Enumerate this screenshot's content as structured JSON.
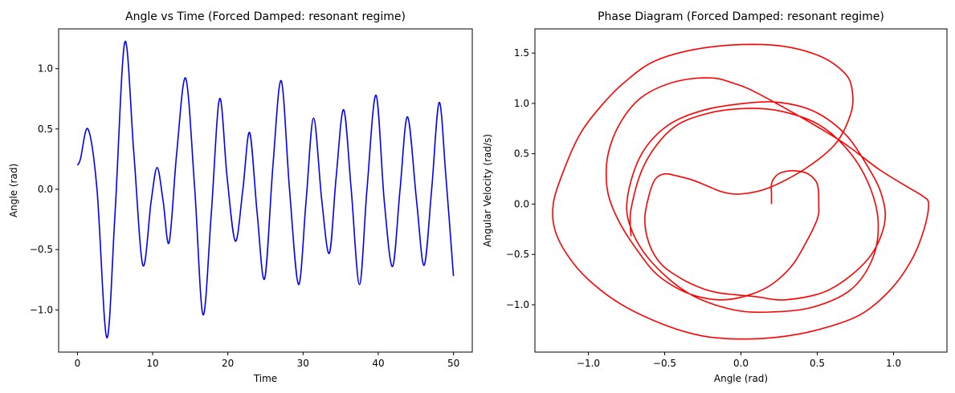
{
  "chart_data": [
    {
      "type": "line",
      "title": "Angle vs Time (Forced Damped: resonant regime)",
      "xlabel": "Time",
      "ylabel": "Angle (rad)",
      "xlim": [
        -2.5,
        52.5
      ],
      "ylim": [
        -1.35,
        1.33
      ],
      "xticks": [
        0,
        10,
        20,
        30,
        40,
        50
      ],
      "xtick_labels": [
        "0",
        "10",
        "20",
        "30",
        "40",
        "50"
      ],
      "yticks": [
        -1.0,
        -0.5,
        0.0,
        0.5,
        1.0
      ],
      "ytick_labels": [
        "−1.0",
        "−0.5",
        "0.0",
        "0.5",
        "1.0"
      ],
      "grid": false,
      "color": "#0000ff",
      "series": [
        {
          "x": [
            0,
            0.4,
            1.4,
            2.6,
            3.9,
            5.0,
            6.3,
            7.5,
            8.7,
            9.8,
            10.6,
            11.4,
            12.2,
            13.2,
            14.4,
            15.6,
            16.7,
            17.8,
            18.9,
            19.9,
            21.0,
            22.0,
            22.9,
            23.9,
            24.9,
            26.0,
            27.1,
            28.2,
            29.4,
            30.4,
            31.4,
            32.5,
            33.5,
            34.4,
            35.4,
            36.4,
            37.5,
            38.5,
            39.7,
            40.8,
            41.9,
            42.9,
            43.9,
            45.1,
            46.1,
            47.1,
            48.1,
            49.0,
            50.0
          ],
          "y": [
            0.2,
            0.25,
            0.5,
            0.0,
            -1.23,
            -0.2,
            1.22,
            0.3,
            -0.63,
            -0.1,
            0.18,
            -0.1,
            -0.44,
            0.3,
            0.92,
            0.0,
            -1.04,
            -0.2,
            0.75,
            0.1,
            -0.43,
            0.0,
            0.47,
            -0.2,
            -0.74,
            0.2,
            0.9,
            0.0,
            -0.79,
            -0.1,
            0.59,
            -0.1,
            -0.53,
            0.1,
            0.66,
            0.0,
            -0.79,
            0.0,
            0.78,
            -0.1,
            -0.64,
            0.0,
            0.6,
            -0.1,
            -0.63,
            0.0,
            0.72,
            0.1,
            -0.72
          ]
        }
      ]
    },
    {
      "type": "line",
      "title": "Phase Diagram (Forced Damped: resonant regime)",
      "xlabel": "Angle (rad)",
      "ylabel": "Angular Velocity (rad/s)",
      "xlim": [
        -1.35,
        1.35
      ],
      "ylim": [
        -1.47,
        1.74
      ],
      "xticks": [
        -1.0,
        -0.5,
        0.0,
        0.5,
        1.0
      ],
      "xtick_labels": [
        "−1.0",
        "−0.5",
        "0.0",
        "0.5",
        "1.0"
      ],
      "yticks": [
        -1.0,
        -0.5,
        0.0,
        0.5,
        1.0,
        1.5
      ],
      "ytick_labels": [
        "−1.0",
        "−0.5",
        "0.0",
        "0.5",
        "1.0",
        "1.5"
      ],
      "grid": false,
      "color": "#ff0000",
      "series": [
        {
          "x": [
            0.2,
            0.2,
            0.2,
            0.23,
            0.28,
            0.36,
            0.44,
            0.5,
            0.51,
            0.5,
            0.42,
            0.33,
            0.2,
            0.06,
            -0.1,
            -0.25,
            -0.4,
            -0.55,
            -0.66,
            -0.79,
            -0.87,
            -0.88,
            -0.84,
            -0.76,
            -0.66,
            -0.52,
            -0.35,
            -0.17,
            -0.05,
            0.07,
            0.35,
            0.66,
            0.9,
            1.08,
            1.19,
            1.23,
            1.2,
            1.12,
            0.98,
            0.78,
            0.5,
            0.25,
            0.0,
            -0.25,
            -0.5,
            -0.78,
            -1.0,
            -1.14,
            -1.22,
            -1.23,
            -1.17,
            -1.06,
            -0.93,
            -0.77,
            -0.55,
            -0.2,
            0.2,
            0.5,
            0.68,
            0.73,
            0.72,
            0.62,
            0.42,
            0.18,
            0.0,
            -0.12,
            -0.22,
            -0.32,
            -0.42,
            -0.5,
            -0.56,
            -0.6,
            -0.63,
            -0.6,
            -0.52,
            -0.38,
            -0.25,
            -0.15,
            -0.04,
            0.1,
            0.3,
            0.58,
            0.83,
            0.94,
            0.92,
            0.82,
            0.68,
            0.48,
            0.25,
            0.02,
            -0.25,
            -0.48,
            -0.65,
            -0.74,
            -0.73,
            -0.6,
            -0.35,
            -0.05,
            0.22,
            0.48,
            0.72,
            0.86,
            0.9,
            0.85,
            0.72,
            0.52,
            0.27,
            0.04,
            -0.22,
            -0.45,
            -0.63,
            -0.72,
            -0.72
          ],
          "y": [
            0.0,
            0.1,
            0.2,
            0.28,
            0.32,
            0.33,
            0.3,
            0.2,
            0.0,
            -0.15,
            -0.4,
            -0.62,
            -0.8,
            -0.9,
            -0.95,
            -0.93,
            -0.85,
            -0.7,
            -0.5,
            -0.2,
            0.1,
            0.4,
            0.65,
            0.88,
            1.05,
            1.17,
            1.24,
            1.25,
            1.2,
            1.13,
            0.9,
            0.62,
            0.35,
            0.18,
            0.08,
            0.0,
            -0.25,
            -0.55,
            -0.85,
            -1.1,
            -1.25,
            -1.32,
            -1.34,
            -1.31,
            -1.2,
            -1.0,
            -0.75,
            -0.5,
            -0.25,
            0.0,
            0.3,
            0.68,
            0.95,
            1.2,
            1.43,
            1.56,
            1.58,
            1.48,
            1.3,
            1.12,
            0.9,
            0.6,
            0.35,
            0.16,
            0.1,
            0.12,
            0.18,
            0.24,
            0.28,
            0.3,
            0.25,
            0.1,
            -0.15,
            -0.4,
            -0.6,
            -0.75,
            -0.84,
            -0.88,
            -0.9,
            -0.92,
            -0.95,
            -0.85,
            -0.55,
            -0.2,
            0.1,
            0.4,
            0.7,
            0.92,
            1.01,
            1.0,
            0.93,
            0.78,
            0.5,
            0.1,
            -0.2,
            -0.55,
            -0.88,
            -1.05,
            -1.07,
            -1.02,
            -0.85,
            -0.55,
            -0.2,
            0.15,
            0.5,
            0.78,
            0.92,
            0.95,
            0.9,
            0.75,
            0.4,
            -0.05,
            -0.32
          ]
        }
      ]
    }
  ]
}
